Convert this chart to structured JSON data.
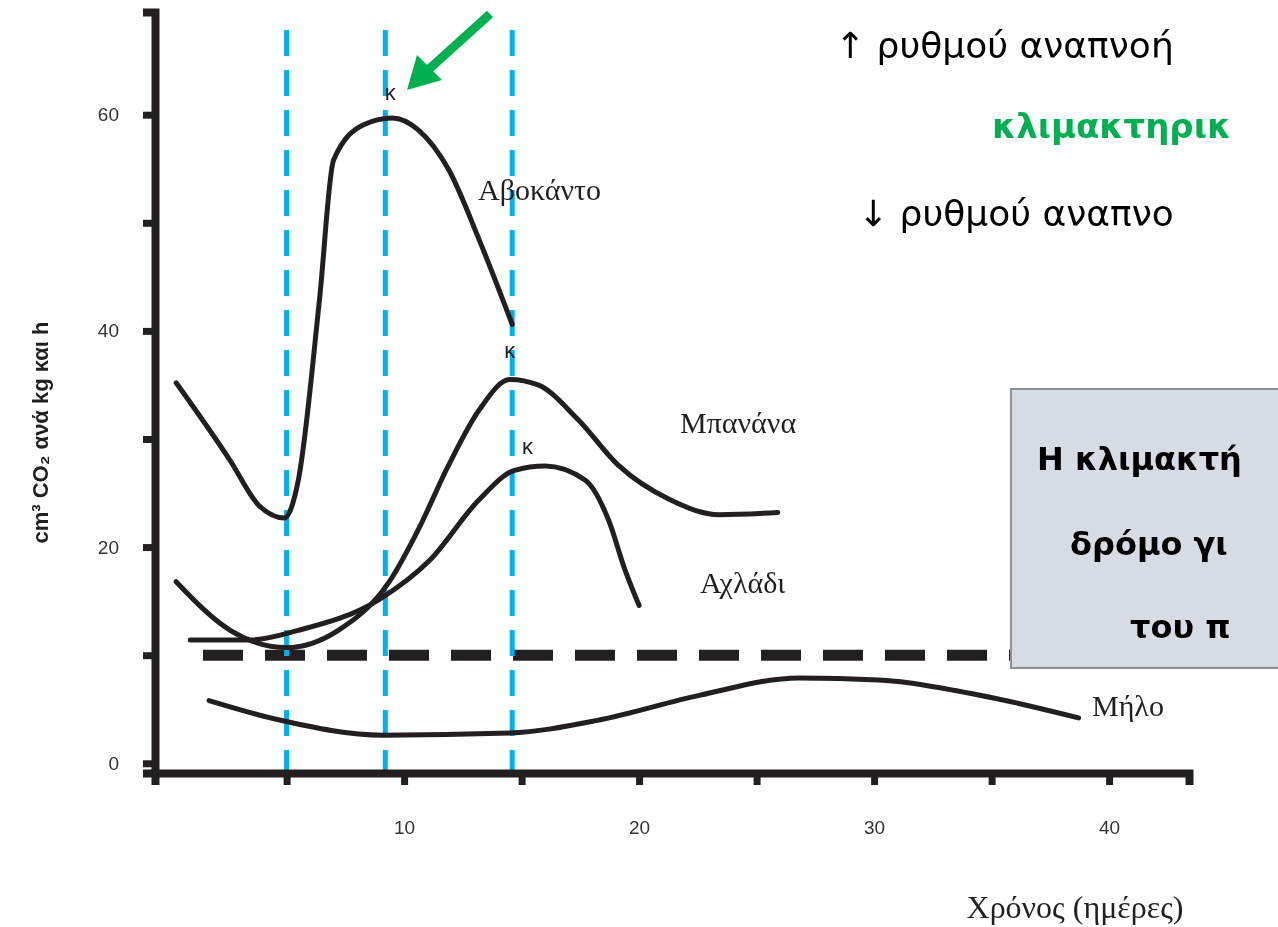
{
  "chart_data": {
    "type": "line",
    "xlabel": "Χρόνος (ημέρες)",
    "ylabel": "cm³ CO₂ ανά kg και h",
    "xlim": [
      -0.6,
      43.4
    ],
    "ylim": [
      -0.9,
      69.5
    ],
    "xticks": [
      {
        "value": 5,
        "label": null
      },
      10,
      {
        "value": 15,
        "label": null
      },
      20,
      {
        "value": 25,
        "label": null
      },
      30,
      {
        "value": 35,
        "label": null
      },
      40
    ],
    "yticks": [
      0,
      {
        "value": 10,
        "label": null
      },
      20,
      {
        "value": 30,
        "label": null
      },
      40,
      {
        "value": 50,
        "label": null
      },
      60
    ],
    "grid": false,
    "marker": "none",
    "line_style": "solid",
    "series": [
      {
        "name": "Αβοκάντο",
        "color": "#231f20",
        "x": [
          0.3,
          2.6,
          3.8,
          4.9,
          5.5,
          6.4,
          7.0,
          8.3,
          9.5,
          10.6,
          11.9,
          13.2,
          14.6
        ],
        "values": [
          35.2,
          28,
          23.9,
          22.7,
          26.2,
          42.9,
          55.8,
          59.1,
          59.7,
          58.6,
          54.9,
          48.4,
          40.6
        ]
      },
      {
        "name": "Μπανάνα",
        "color": "#231f20",
        "x": [
          0.3,
          2.6,
          5,
          7.2,
          9.4,
          10.6,
          11.9,
          13.2,
          14.5,
          15.7,
          17.4,
          19.1,
          21.3,
          23.4,
          25.9
        ],
        "values": [
          16.8,
          12.3,
          10.7,
          12.3,
          16.9,
          21.6,
          27.6,
          32.7,
          35.5,
          35,
          31.8,
          27.6,
          24.4,
          23,
          23.2
        ]
      },
      {
        "name": "Αχλάδι",
        "color": "#231f20",
        "x": [
          0.9,
          3.4,
          5.5,
          8.9,
          11.1,
          13.2,
          14.7,
          16,
          17.7,
          18.7,
          19.4,
          20
        ],
        "values": [
          11.4,
          11.4,
          12.3,
          15.1,
          18.8,
          24.4,
          27.1,
          27.5,
          26.2,
          22.5,
          17.9,
          14.6
        ]
      },
      {
        "name": "Μήλο",
        "color": "#231f20",
        "x": [
          1.7,
          4.7,
          9.1,
          14.5,
          18.3,
          22.6,
          26.8,
          30.2,
          34.5,
          38.7
        ],
        "values": [
          5.8,
          4,
          2.6,
          2.8,
          4,
          6.3,
          7.9,
          7.7,
          6.3,
          4.2
        ]
      }
    ],
    "ref_lines": [
      {
        "axis": "y",
        "value": 10,
        "color": "#231f20",
        "line_style": "dashed"
      },
      {
        "axis": "x",
        "value": 5,
        "color": "#00b0f0",
        "line_style": "dashed"
      },
      {
        "axis": "x",
        "value": 9.2,
        "color": "#00b0f0",
        "line_style": "dashed"
      },
      {
        "axis": "x",
        "value": 14.6,
        "color": "#00b0f0",
        "line_style": "dashed"
      }
    ],
    "annotations": [
      {
        "text": "κ",
        "x": 9.5,
        "y": 59.7
      },
      {
        "text": "κ",
        "x": 14.5,
        "y": 35.5
      },
      {
        "text": "κ",
        "x": 14.7,
        "y": 27.1
      },
      "↑ ρυθμού αναπνοή",
      "κλιμακτηρικ",
      "↓ ρυθμού αναπνο",
      "Η κλιμακτή",
      "δρόμο γι",
      "του π"
    ]
  }
}
